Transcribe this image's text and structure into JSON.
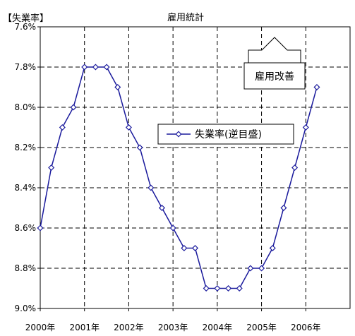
{
  "chart_data": {
    "type": "line",
    "title": "雇用統計",
    "ylabel": "【失業率】",
    "xlabel": "",
    "ylim": [
      7.6,
      9.0
    ],
    "y_inverted": true,
    "y_ticks": [
      "7.6%",
      "7.8%",
      "8.0%",
      "8.2%",
      "8.4%",
      "8.6%",
      "8.8%",
      "9.0%"
    ],
    "x_ticks": [
      "2000年",
      "2001年",
      "2002年",
      "2003年",
      "2004年",
      "2005年",
      "2006年"
    ],
    "grid": true,
    "legend_position": "middle-right",
    "series": [
      {
        "name": "失業率(逆目盛)",
        "color": "#1a1a9c",
        "values": [
          8.6,
          8.3,
          8.1,
          8.0,
          7.8,
          7.8,
          7.8,
          7.9,
          8.1,
          8.2,
          8.4,
          8.5,
          8.6,
          8.7,
          8.7,
          8.9,
          8.9,
          8.9,
          8.9,
          8.8,
          8.8,
          8.7,
          8.5,
          8.3,
          8.1,
          7.9
        ]
      }
    ],
    "annotation": {
      "label": "雇用改善",
      "icon": "up-arrow-icon"
    }
  }
}
